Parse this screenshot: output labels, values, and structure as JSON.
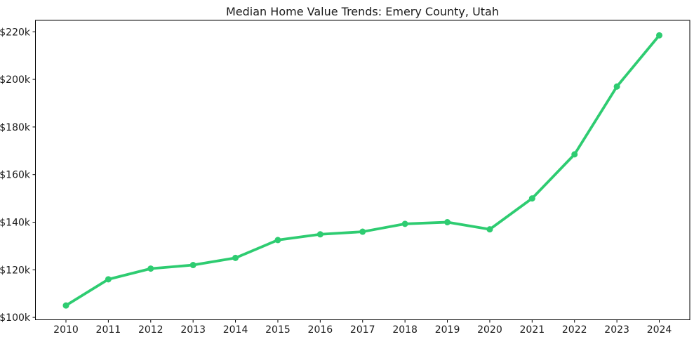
{
  "figure": {
    "background_color": "#ffffff"
  },
  "chart_data": {
    "type": "line",
    "title": "Median Home Value Trends: Emery County, Utah",
    "xlabel": "",
    "ylabel": "",
    "categories": [
      "2010",
      "2011",
      "2012",
      "2013",
      "2014",
      "2015",
      "2016",
      "2017",
      "2018",
      "2019",
      "2020",
      "2021",
      "2022",
      "2023",
      "2024"
    ],
    "values": [
      105000,
      116000,
      120500,
      122000,
      125000,
      132500,
      134900,
      136000,
      139300,
      140000,
      137000,
      150000,
      168500,
      197000,
      218500
    ],
    "ytick_values": [
      100000,
      120000,
      140000,
      160000,
      180000,
      200000,
      220000
    ],
    "ytick_labels": [
      "$100k",
      "$120k",
      "$140k",
      "$160k",
      "$180k",
      "$200k",
      "$220k"
    ],
    "ylim": [
      99000,
      224800
    ],
    "x_margin": 0.72,
    "grid": false,
    "legend_position": "none",
    "line_color": "#2ecc71",
    "marker_style": "circle",
    "axis_color": "#000000",
    "text_color": "#1a1a1a"
  }
}
